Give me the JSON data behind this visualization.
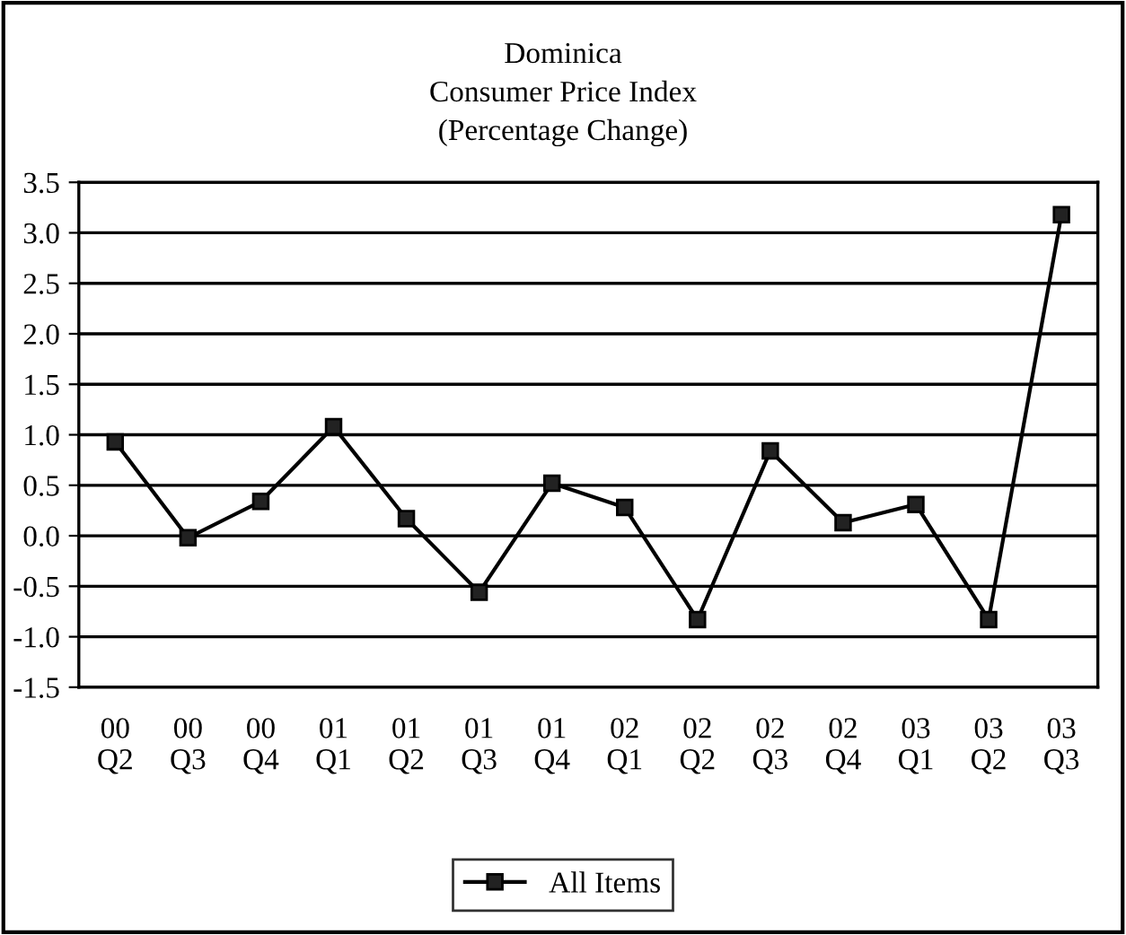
{
  "chart_data": {
    "type": "line",
    "title": "Dominica\nConsumer Price Index\n(Percentage Change)",
    "categories": [
      "00\nQ2",
      "00\nQ3",
      "00\nQ4",
      "01\nQ1",
      "01\nQ2",
      "01\nQ3",
      "01\nQ4",
      "02\nQ1",
      "02\nQ2",
      "02\nQ3",
      "02\nQ4",
      "03\nQ1",
      "03\nQ2",
      "03\nQ3"
    ],
    "series": [
      {
        "name": "All Items",
        "color": "#000000",
        "values": [
          0.93,
          -0.02,
          0.34,
          1.08,
          0.17,
          -0.56,
          0.52,
          0.28,
          -0.83,
          0.84,
          0.13,
          0.31,
          -0.83,
          3.18
        ]
      }
    ],
    "ylim": [
      -1.5,
      3.5
    ],
    "yticks": [
      {
        "value": -1.5,
        "label": "-1.5"
      },
      {
        "value": -1.0,
        "label": "-1.0"
      },
      {
        "value": -0.5,
        "label": "-0.5"
      },
      {
        "value": 0.0,
        "label": "0.0"
      },
      {
        "value": 0.5,
        "label": "0.5"
      },
      {
        "value": 1.0,
        "label": "1.0"
      },
      {
        "value": 1.5,
        "label": "1.5"
      },
      {
        "value": 2.0,
        "label": "2.0"
      },
      {
        "value": 2.5,
        "label": "2.5"
      },
      {
        "value": 3.0,
        "label": "3.0"
      },
      {
        "value": 3.5,
        "label": "3.5"
      }
    ],
    "grid": "y",
    "legend": "bottom",
    "marker": "square",
    "line_style": "solid"
  }
}
